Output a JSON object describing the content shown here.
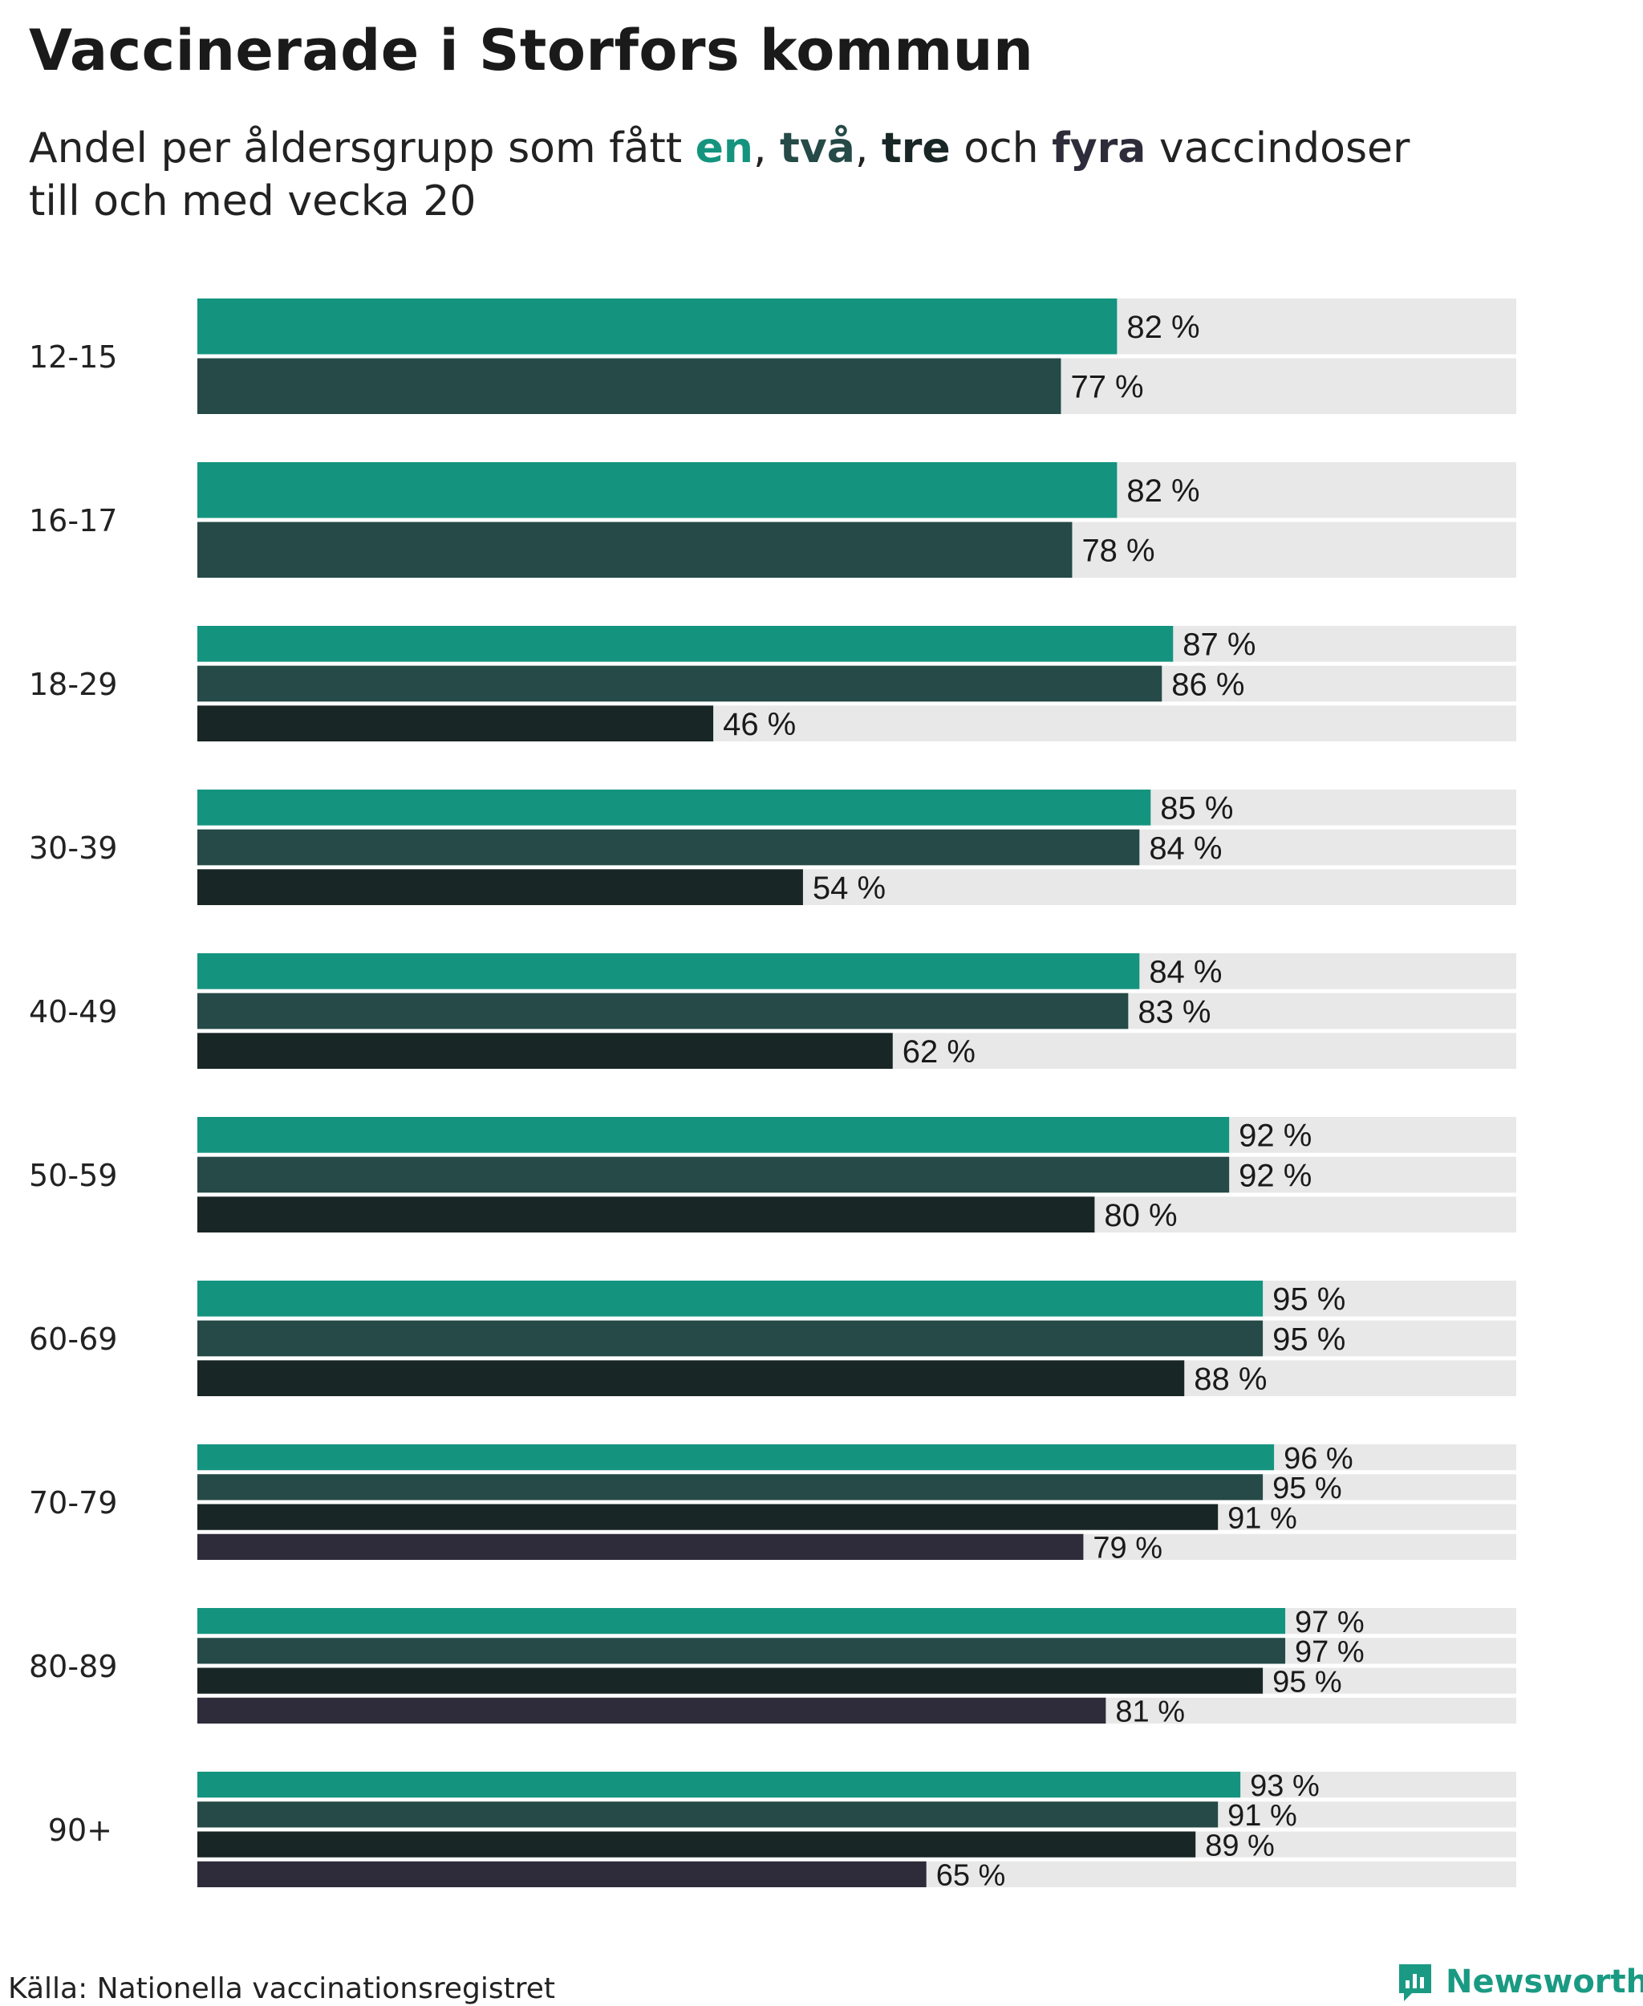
{
  "title": "Vaccinerade i Storfors kommun",
  "subtitle": {
    "part1": "Andel per åldersgrupp som fått ",
    "w1": "en",
    "sep1": ", ",
    "w2": "två",
    "sep2": ", ",
    "w3": "tre",
    "sep3": " och ",
    "w4": "fyra",
    "part2": " vaccindoser",
    "line2": "till och med vecka 20"
  },
  "colors": {
    "dose1": "#14947f",
    "dose2": "#254a47",
    "dose3": "#182625",
    "dose4": "#2e2c3a",
    "track": "#e8e8e8"
  },
  "source": "Källa: Nationella vaccinationsregistret",
  "brand": {
    "name": "Newsworthy",
    "icon": "chart-logo-icon"
  },
  "chart_data": {
    "type": "bar",
    "orientation": "horizontal",
    "title": "Vaccinerade i Storfors kommun",
    "xlim": [
      0,
      100
    ],
    "unit": "%",
    "categories": [
      "12-15",
      "16-17",
      "18-29",
      "30-39",
      "40-49",
      "50-59",
      "60-69",
      "70-79",
      "80-89",
      "90+"
    ],
    "series": [
      {
        "name": "en",
        "values": [
          82,
          82,
          87,
          85,
          84,
          92,
          95,
          96,
          97,
          93
        ]
      },
      {
        "name": "två",
        "values": [
          77,
          78,
          86,
          84,
          83,
          92,
          95,
          95,
          97,
          91
        ]
      },
      {
        "name": "tre",
        "values": [
          null,
          null,
          46,
          54,
          62,
          80,
          88,
          91,
          95,
          89
        ]
      },
      {
        "name": "fyra",
        "values": [
          null,
          null,
          null,
          null,
          null,
          null,
          null,
          79,
          81,
          65
        ]
      }
    ]
  }
}
